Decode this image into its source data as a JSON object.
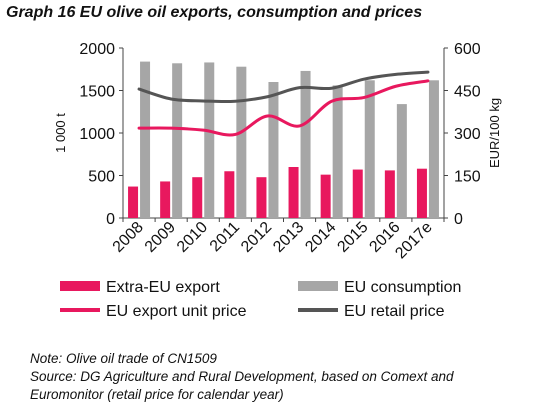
{
  "chart_data": {
    "type": "bar+line",
    "title": "Graph 16 EU olive oil exports, consumption and prices",
    "categories": [
      "2008",
      "2009",
      "2010",
      "2011",
      "2012",
      "2013",
      "2014",
      "2015",
      "2016",
      "2017e"
    ],
    "y_left": {
      "label": "1 000 t",
      "range": [
        0,
        2000
      ],
      "ticks": [
        "0",
        "500",
        "1000",
        "1500",
        "2000"
      ]
    },
    "y_right": {
      "label": "EUR/100 kg",
      "range": [
        0,
        600
      ],
      "ticks": [
        "0",
        "150",
        "300",
        "450",
        "600"
      ]
    },
    "series": [
      {
        "name": "Extra-EU export",
        "kind": "bar",
        "axis": "left",
        "color": "#e8185e",
        "values": [
          370,
          430,
          480,
          550,
          480,
          600,
          510,
          570,
          560,
          580
        ]
      },
      {
        "name": "EU consumption",
        "kind": "bar",
        "axis": "left",
        "color": "#a6a6a6",
        "values": [
          1840,
          1820,
          1830,
          1780,
          1600,
          1730,
          1560,
          1620,
          1340,
          1620
        ]
      },
      {
        "name": "EU export unit price",
        "kind": "line",
        "axis": "right",
        "color": "#e8185e",
        "values": [
          317,
          317,
          310,
          295,
          360,
          325,
          412,
          425,
          465,
          484
        ]
      },
      {
        "name": "EU retail price",
        "kind": "line",
        "axis": "right",
        "color": "#555555",
        "values": [
          455,
          420,
          413,
          412,
          428,
          460,
          458,
          490,
          507,
          515
        ]
      }
    ],
    "legend": "bottom",
    "grid": false
  },
  "notes": [
    "Note: Olive oil trade of CN1509",
    "Source: DG Agriculture and Rural Development, based on Comext and",
    "Euromonitor (retail price for calendar year)"
  ]
}
